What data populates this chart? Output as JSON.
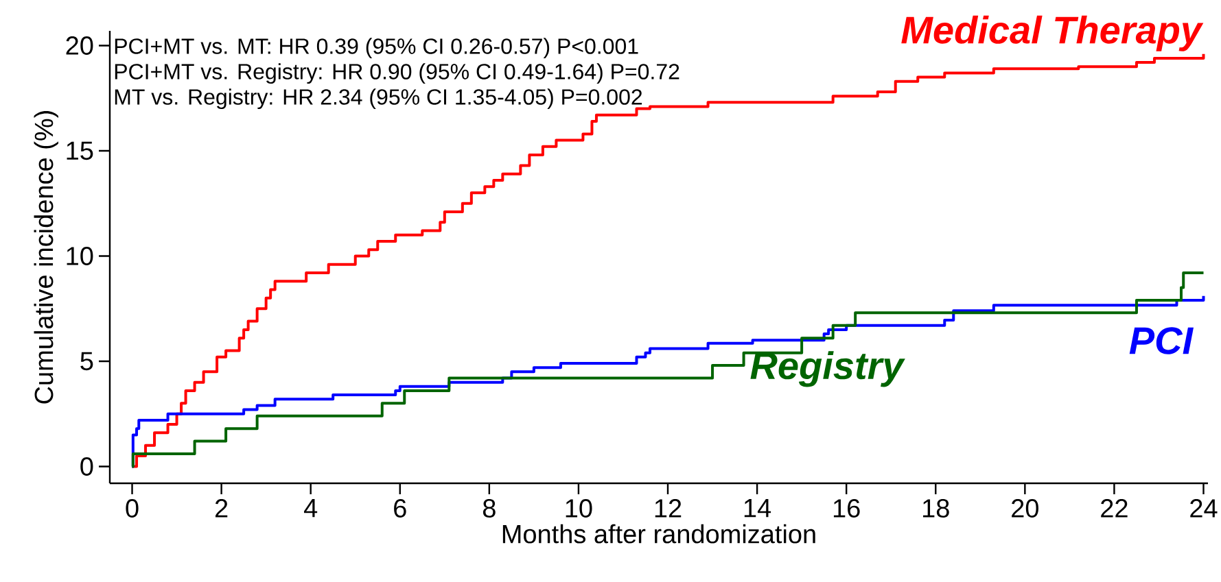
{
  "chart_data": {
    "type": "step",
    "xlabel": "Months after randomization",
    "ylabel": "Cumulative incidence (%)",
    "xlim": [
      -0.5,
      24.1
    ],
    "ylim": [
      -0.8,
      20.7
    ],
    "xticks": [
      0,
      2,
      4,
      6,
      8,
      10,
      12,
      14,
      16,
      18,
      20,
      22,
      24
    ],
    "yticks": [
      0,
      5,
      10,
      15,
      20
    ],
    "grid": false,
    "annotations": [
      "PCI+MT vs. MT:          HR 0.39 (95% CI 0.26-0.57) P<0.001",
      "PCI+MT vs. Registry: HR 0.90 (95% CI 0.49-1.64) P=0.72",
      "MT vs. Registry:         HR 2.34 (95% CI 1.35-4.05) P=0.002"
    ],
    "series": [
      {
        "name": "Medical Therapy",
        "color": "#ff0000",
        "x": [
          0,
          0.1,
          0.3,
          0.5,
          0.8,
          1.0,
          1.1,
          1.2,
          1.4,
          1.6,
          1.9,
          2.1,
          2.4,
          2.5,
          2.6,
          2.8,
          3.0,
          3.1,
          3.2,
          3.9,
          4.4,
          5.0,
          5.3,
          5.5,
          5.9,
          6.5,
          6.9,
          7.0,
          7.4,
          7.6,
          7.9,
          8.1,
          8.3,
          8.7,
          8.9,
          9.2,
          9.5,
          10.1,
          10.3,
          10.4,
          11.3,
          11.6,
          12.9,
          15.7,
          16.7,
          17.1,
          17.6,
          18.2,
          19.3,
          21.2,
          22.5,
          22.9,
          24
        ],
        "values": [
          0,
          0.5,
          1.0,
          1.6,
          2.0,
          2.5,
          3.0,
          3.6,
          4.0,
          4.5,
          5.2,
          5.5,
          6.1,
          6.5,
          6.9,
          7.5,
          8.0,
          8.4,
          8.8,
          9.2,
          9.6,
          10.0,
          10.3,
          10.7,
          11.0,
          11.2,
          11.6,
          12.1,
          12.5,
          13.0,
          13.3,
          13.6,
          13.9,
          14.3,
          14.8,
          15.2,
          15.5,
          15.8,
          16.4,
          16.7,
          17.0,
          17.1,
          17.3,
          17.6,
          17.8,
          18.3,
          18.5,
          18.7,
          18.9,
          19.0,
          19.2,
          19.4,
          19.6
        ]
      },
      {
        "name": "PCI",
        "color": "#0000ff",
        "x": [
          0,
          0.02,
          0.1,
          0.15,
          0.8,
          2.5,
          2.8,
          3.2,
          4.5,
          5.9,
          6.0,
          7.1,
          8.3,
          8.5,
          9.0,
          9.6,
          11.3,
          11.5,
          11.6,
          12.9,
          13.9,
          15.5,
          15.6,
          16.0,
          18.2,
          18.4,
          19.3,
          23.4,
          24
        ],
        "values": [
          0,
          1.5,
          1.8,
          2.2,
          2.5,
          2.7,
          2.9,
          3.2,
          3.4,
          3.6,
          3.8,
          4.0,
          4.2,
          4.5,
          4.7,
          4.9,
          5.2,
          5.4,
          5.6,
          5.85,
          6.0,
          6.3,
          6.5,
          6.7,
          6.95,
          7.4,
          7.66,
          7.9,
          8.1
        ]
      },
      {
        "name": "Registry",
        "color": "#006400",
        "x": [
          0,
          0.02,
          1.4,
          2.1,
          2.8,
          5.6,
          6.1,
          7.1,
          13.0,
          13.7,
          15.0,
          15.7,
          16.2,
          22.5,
          23.5,
          23.55,
          24
        ],
        "values": [
          0,
          0.6,
          1.2,
          1.8,
          2.4,
          3.0,
          3.6,
          4.2,
          4.8,
          5.4,
          6.1,
          6.7,
          7.3,
          7.9,
          8.5,
          9.2,
          9.2
        ]
      }
    ]
  }
}
